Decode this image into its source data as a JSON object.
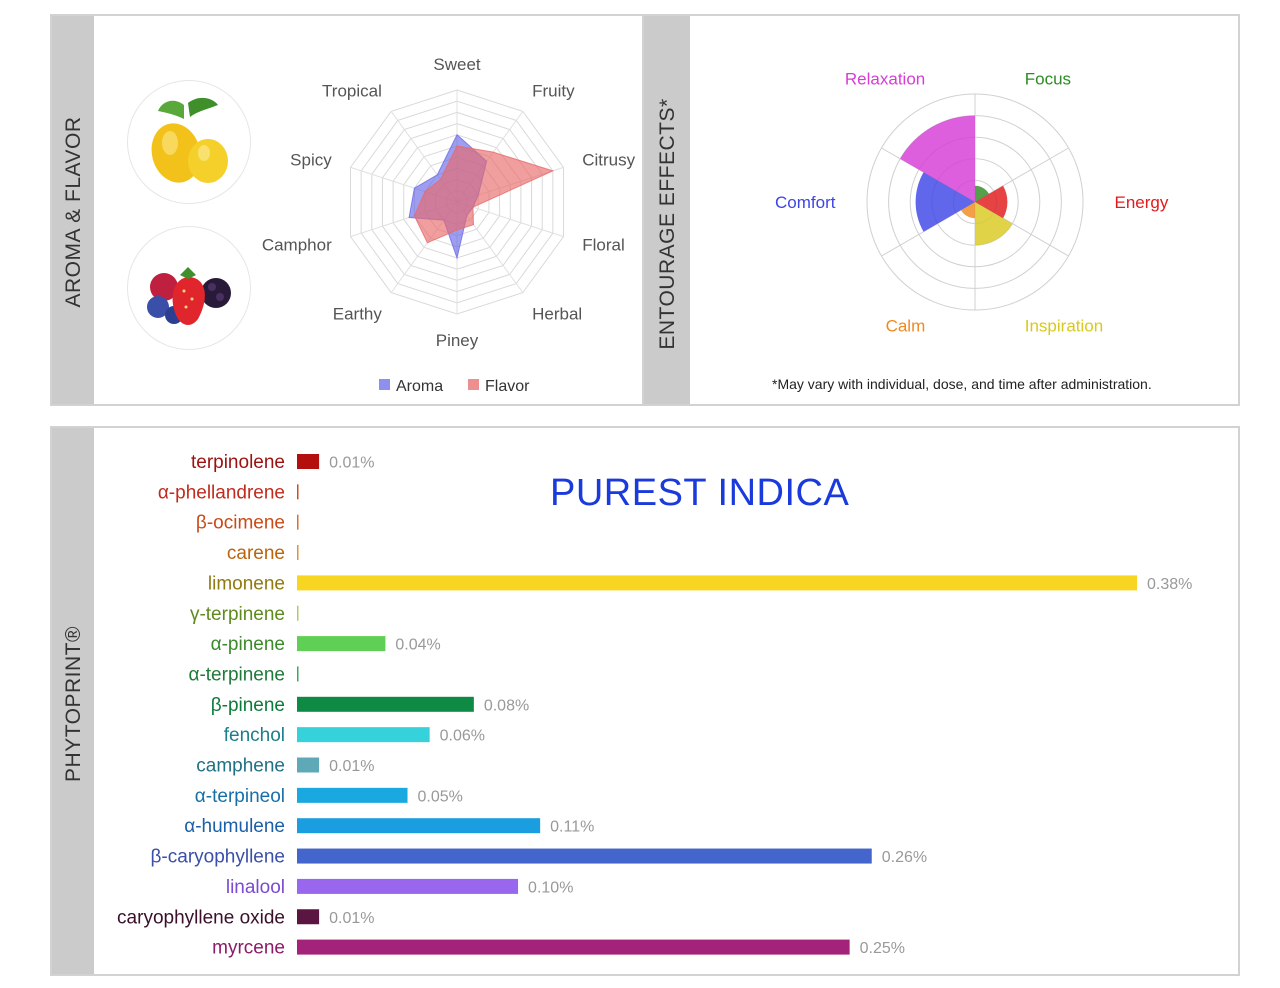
{
  "aroma_panel": {
    "side_label": "AROMA & FLAVOR",
    "fruit_icons": [
      "lemon-icon",
      "berries-icon"
    ]
  },
  "effects_panel": {
    "side_label": "ENTOURAGE EFFECTS*",
    "footnote": "*May vary with individual, dose, and time after administration."
  },
  "phyto_panel": {
    "side_label": "PHYTOPRINT®"
  },
  "chart_data": [
    {
      "type": "radar",
      "axes": [
        "Sweet",
        "Fruity",
        "Citrusy",
        "Floral",
        "Herbal",
        "Piney",
        "Earthy",
        "Camphor",
        "Spicy",
        "Tropical"
      ],
      "rmax": 10,
      "rings": 10,
      "series": [
        {
          "name": "Aroma",
          "color": "#6a6ae8",
          "values": [
            6,
            4.5,
            2,
            1.5,
            1.5,
            5,
            2,
            4.5,
            4,
            3
          ]
        },
        {
          "name": "Flavor",
          "color": "#e86a6a",
          "values": [
            5,
            5.5,
            9,
            1.5,
            2.5,
            2.5,
            4.5,
            4,
            3,
            2.5
          ]
        }
      ],
      "legend_position": "bottom"
    },
    {
      "type": "polar-area",
      "categories": [
        {
          "label": "Focus",
          "value": 1.5,
          "color": "#2e8b23"
        },
        {
          "label": "Energy",
          "value": 3,
          "color": "#e01b1b"
        },
        {
          "label": "Inspiration",
          "value": 4,
          "color": "#d9c91e"
        },
        {
          "label": "Calm",
          "value": 1.5,
          "color": "#f08a1f"
        },
        {
          "label": "Comfort",
          "value": 5.5,
          "color": "#3d45e6"
        },
        {
          "label": "Relaxation",
          "value": 8,
          "color": "#d63cd6"
        }
      ],
      "rmax": 10,
      "rings": 5
    },
    {
      "type": "bar",
      "orientation": "horizontal",
      "title": "PUREST INDICA",
      "unit": "%",
      "xmax": 0.38,
      "bars": [
        {
          "label": "terpinolene",
          "value": 0.01,
          "value_label": "0.01%",
          "color": "#b30f0f",
          "label_color": "#9c1010"
        },
        {
          "label": "α-phellandrene",
          "value": 0,
          "value_label": "",
          "color": "#d34a22",
          "label_color": "#c02b1e"
        },
        {
          "label": "β-ocimene",
          "value": 0,
          "value_label": "",
          "color": "#e06e2a",
          "label_color": "#c94a18"
        },
        {
          "label": "carene",
          "value": 0,
          "value_label": "",
          "color": "#e09040",
          "label_color": "#b9650c"
        },
        {
          "label": "limonene",
          "value": 0.38,
          "value_label": "0.38%",
          "color": "#f8d520",
          "label_color": "#8f7a10"
        },
        {
          "label": "γ-terpinene",
          "value": 0,
          "value_label": "",
          "color": "#a8d060",
          "label_color": "#5e8a1e"
        },
        {
          "label": "α-pinene",
          "value": 0.04,
          "value_label": "0.04%",
          "color": "#5fcf55",
          "label_color": "#3a8a2a"
        },
        {
          "label": "α-terpinene",
          "value": 0,
          "value_label": "",
          "color": "#3aa860",
          "label_color": "#1f7a3a"
        },
        {
          "label": "β-pinene",
          "value": 0.08,
          "value_label": "0.08%",
          "color": "#0f8a44",
          "label_color": "#0d7a3a"
        },
        {
          "label": "fenchol",
          "value": 0.06,
          "value_label": "0.06%",
          "color": "#35d2db",
          "label_color": "#1a7f88"
        },
        {
          "label": "camphene",
          "value": 0.01,
          "value_label": "0.01%",
          "color": "#5fa8b8",
          "label_color": "#1f6f85"
        },
        {
          "label": "α-terpineol",
          "value": 0.05,
          "value_label": "0.05%",
          "color": "#1aa8e0",
          "label_color": "#186fa8"
        },
        {
          "label": "α-humulene",
          "value": 0.11,
          "value_label": "0.11%",
          "color": "#1a9ee0",
          "label_color": "#1a5fa8"
        },
        {
          "label": "β-caryophyllene",
          "value": 0.26,
          "value_label": "0.26%",
          "color": "#4466cc",
          "label_color": "#3a4fa8"
        },
        {
          "label": "linalool",
          "value": 0.1,
          "value_label": "0.10%",
          "color": "#9966ee",
          "label_color": "#7a4ad0"
        },
        {
          "label": "caryophyllene oxide",
          "value": 0.01,
          "value_label": "0.01%",
          "color": "#5a1540",
          "label_color": "#3a0f2a"
        },
        {
          "label": "myrcene",
          "value": 0.25,
          "value_label": "0.25%",
          "color": "#a3237a",
          "label_color": "#8c1a66"
        }
      ]
    }
  ]
}
